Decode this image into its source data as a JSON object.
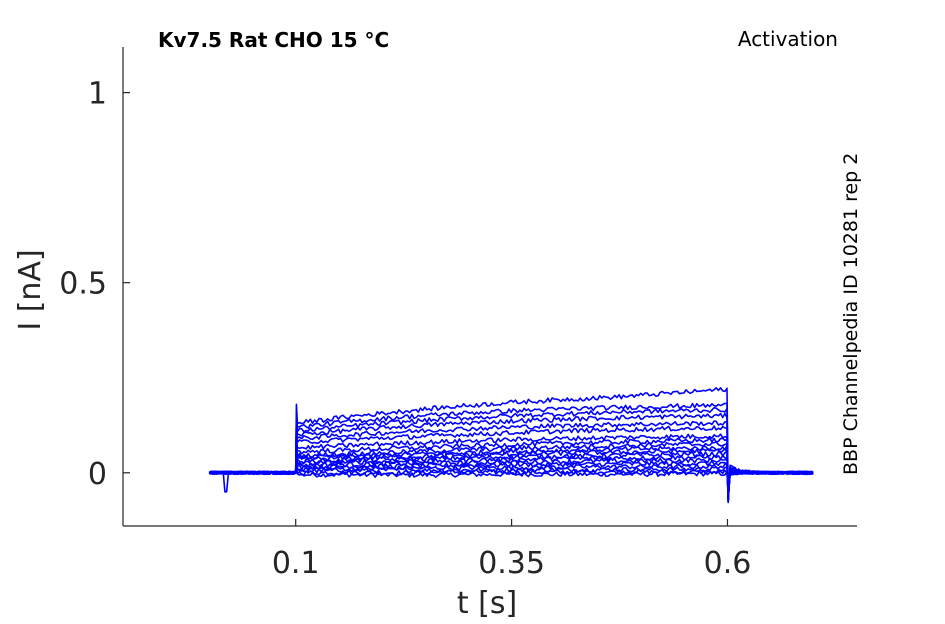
{
  "chart_data": {
    "type": "line",
    "title": "Kv7.5  Rat  CHO  15 °C",
    "protocol_label": "Activation",
    "side_label": "BBP Channelpedia ID 10281 rep 2",
    "xlabel": "t [s]",
    "ylabel": "I [nA]",
    "xlim": [
      -0.1,
      0.75
    ],
    "ylim": [
      -0.14,
      1.12
    ],
    "xticks": [
      0.1,
      0.35,
      0.6
    ],
    "xtick_labels": [
      "0.1",
      "0.35",
      "0.6"
    ],
    "yticks": [
      0,
      0.5,
      1
    ],
    "ytick_labels": [
      "0",
      "0.5",
      "1"
    ],
    "line_color": "#0000ff",
    "axis_color": "#262626",
    "grid": false,
    "pulse": {
      "start": 0.1,
      "end": 0.6,
      "trace_start": 0.0,
      "trace_end": 0.7
    },
    "series": [
      {
        "values": [
          -0.005,
          -0.005,
          -0.006,
          -0.005,
          -0.004,
          -0.004,
          -0.004,
          -0.003,
          -0.002
        ]
      },
      {
        "values": [
          0.0,
          0.001,
          0.0,
          0.002,
          0.001,
          0.002,
          0.003,
          0.002,
          0.002
        ]
      },
      {
        "values": [
          0.005,
          0.006,
          0.007,
          0.007,
          0.008,
          0.008,
          0.009,
          0.009,
          0.01
        ]
      },
      {
        "values": [
          0.01,
          0.011,
          0.012,
          0.013,
          0.014,
          0.015,
          0.016,
          0.016,
          0.017
        ]
      },
      {
        "values": [
          0.015,
          0.017,
          0.018,
          0.02,
          0.021,
          0.022,
          0.023,
          0.024,
          0.025
        ]
      },
      {
        "values": [
          0.02,
          0.022,
          0.024,
          0.026,
          0.028,
          0.03,
          0.031,
          0.032,
          0.033
        ]
      },
      {
        "values": [
          0.025,
          0.028,
          0.03,
          0.033,
          0.035,
          0.037,
          0.039,
          0.04,
          0.041
        ]
      },
      {
        "values": [
          0.03,
          0.033,
          0.036,
          0.039,
          0.042,
          0.044,
          0.046,
          0.048,
          0.05
        ]
      },
      {
        "values": [
          0.035,
          0.039,
          0.042,
          0.046,
          0.049,
          0.052,
          0.054,
          0.056,
          0.058
        ]
      },
      {
        "values": [
          0.04,
          0.044,
          0.048,
          0.052,
          0.056,
          0.059,
          0.062,
          0.064,
          0.066
        ]
      },
      {
        "values": [
          0.045,
          0.05,
          0.055,
          0.06,
          0.064,
          0.068,
          0.071,
          0.074,
          0.076
        ]
      },
      {
        "values": [
          0.055,
          0.06,
          0.065,
          0.07,
          0.074,
          0.078,
          0.081,
          0.084,
          0.086
        ]
      },
      {
        "values": [
          0.065,
          0.072,
          0.078,
          0.083,
          0.087,
          0.09,
          0.093,
          0.095,
          0.097
        ]
      },
      {
        "values": [
          0.08,
          0.088,
          0.094,
          0.1,
          0.105,
          0.11,
          0.113,
          0.116,
          0.118
        ]
      },
      {
        "values": [
          0.09,
          0.1,
          0.108,
          0.115,
          0.12,
          0.124,
          0.127,
          0.129,
          0.131
        ]
      },
      {
        "values": [
          0.1,
          0.112,
          0.122,
          0.13,
          0.136,
          0.141,
          0.145,
          0.148,
          0.15
        ]
      },
      {
        "values": [
          0.11,
          0.123,
          0.134,
          0.143,
          0.15,
          0.155,
          0.16,
          0.163,
          0.166
        ]
      },
      {
        "values": [
          0.12,
          0.135,
          0.147,
          0.156,
          0.163,
          0.168,
          0.172,
          0.175,
          0.178
        ]
      },
      {
        "values": [
          0.13,
          0.148,
          0.162,
          0.175,
          0.185,
          0.193,
          0.2,
          0.21,
          0.22
        ]
      }
    ]
  }
}
